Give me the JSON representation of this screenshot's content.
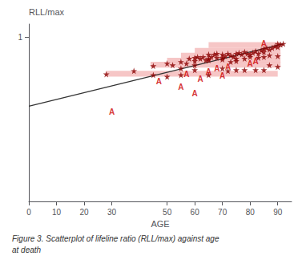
{
  "chart_data": {
    "type": "scatter",
    "title": "Figure 3. Scatterplot of lifeline ratio (RLL/max) against age\nat death",
    "ylabel": "RLL/max",
    "xlabel": "AGE",
    "xlim": [
      0,
      95
    ],
    "ylim": [
      0,
      1.08
    ],
    "xticks": [
      0,
      10,
      20,
      30,
      50,
      60,
      70,
      80,
      90
    ],
    "yticks": [
      1
    ],
    "grid": false,
    "series": [
      {
        "type": "band",
        "color": "#f5c0c0",
        "bands": [
          {
            "x_start": 28,
            "x_end": 90,
            "y_low": 0.76,
            "y_high": 0.795
          },
          {
            "x_start": 44,
            "x_end": 91,
            "y_low": 0.815,
            "y_high": 0.85
          },
          {
            "x_start": 50,
            "x_end": 91,
            "y_low": 0.845,
            "y_high": 0.875
          },
          {
            "x_start": 55,
            "x_end": 91,
            "y_low": 0.87,
            "y_high": 0.905
          },
          {
            "x_start": 60,
            "x_end": 91,
            "y_low": 0.9,
            "y_high": 0.935
          },
          {
            "x_start": 65,
            "x_end": 91,
            "y_low": 0.935,
            "y_high": 0.97
          }
        ]
      },
      {
        "type": "line",
        "color": "#333333",
        "x": [
          0,
          92
        ],
        "values": [
          0.58,
          0.96
        ]
      },
      {
        "type": "scatter",
        "marker": "star",
        "color": "#8B0000",
        "x": [
          28,
          38,
          45,
          50,
          52,
          55,
          57,
          58,
          60,
          60,
          61,
          62,
          63,
          64,
          65,
          65,
          66,
          67,
          68,
          68,
          70,
          70,
          71,
          72,
          73,
          74,
          75,
          75,
          76,
          77,
          78,
          79,
          80,
          81,
          82,
          83,
          84,
          85,
          85,
          86,
          87,
          88,
          89,
          90,
          90,
          91,
          92,
          55,
          60,
          65,
          70,
          72,
          75,
          78,
          82,
          85,
          87,
          90,
          45,
          50,
          55,
          60,
          65,
          70,
          73,
          75,
          78,
          80,
          83,
          85,
          87,
          90
        ],
        "values": [
          0.775,
          0.795,
          0.825,
          0.84,
          0.83,
          0.85,
          0.84,
          0.87,
          0.875,
          0.855,
          0.88,
          0.87,
          0.88,
          0.86,
          0.87,
          0.895,
          0.88,
          0.895,
          0.9,
          0.875,
          0.875,
          0.895,
          0.885,
          0.9,
          0.89,
          0.88,
          0.9,
          0.855,
          0.905,
          0.895,
          0.91,
          0.9,
          0.895,
          0.905,
          0.915,
          0.9,
          0.92,
          0.93,
          0.91,
          0.935,
          0.925,
          0.935,
          0.945,
          0.94,
          0.96,
          0.955,
          0.96,
          0.81,
          0.8,
          0.77,
          0.81,
          0.795,
          0.8,
          0.8,
          0.8,
          0.8,
          0.83,
          0.82,
          0.77,
          0.76,
          0.77,
          0.83,
          0.86,
          0.865,
          0.85,
          0.87,
          0.87,
          0.88,
          0.875,
          0.88,
          0.89,
          0.885
        ]
      },
      {
        "type": "scatter",
        "marker": "A",
        "color": "#cc0000",
        "x": [
          30,
          47,
          55,
          57,
          60,
          62,
          65,
          68,
          70,
          72,
          80,
          82,
          85
        ],
        "values": [
          0.545,
          0.73,
          0.695,
          0.775,
          0.655,
          0.745,
          0.79,
          0.81,
          0.765,
          0.82,
          0.84,
          0.855,
          0.96
        ]
      }
    ]
  }
}
